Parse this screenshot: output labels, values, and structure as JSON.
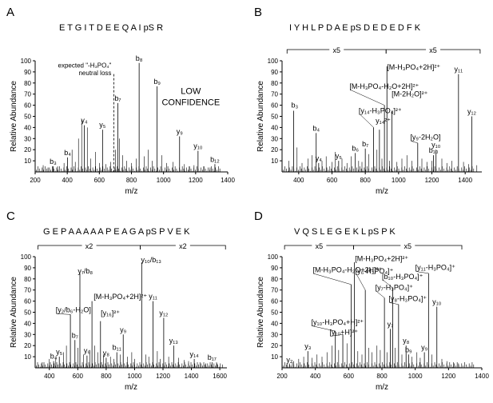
{
  "chart_data": [
    {
      "type": "bar",
      "panel_label": "A",
      "peptide_sequence": "E T G I T D E E Q A I pS R",
      "xlabel": "m/z",
      "ylabel": "Relative Abundance",
      "xlim": [
        200,
        1400
      ],
      "ylim": [
        0,
        100
      ],
      "xticks": [
        "200",
        "400",
        "600",
        "800",
        "1000",
        "1200",
        "1400"
      ],
      "yticks": [
        "10",
        "20",
        "30",
        "40",
        "50",
        "60",
        "70",
        "80",
        "90",
        "100"
      ],
      "annotations": {
        "neutral_loss": [
          "expected \"-H₃PO₄\"",
          "neutral loss"
        ],
        "neutral_loss_mz": 690,
        "confidence": [
          "LOW",
          "CONFIDENCE"
        ]
      },
      "scale_regions": [],
      "peaks": [
        {
          "label": "b₃",
          "mz": 312,
          "value": 5
        },
        {
          "label": "b₄",
          "mz": 402,
          "value": 13
        },
        {
          "label": "y₄",
          "mz": 506,
          "value": 42
        },
        {
          "label": "y₅",
          "mz": 620,
          "value": 38
        },
        {
          "label": "b₇",
          "mz": 715,
          "value": 62
        },
        {
          "label": "b₈",
          "mz": 848,
          "value": 98
        },
        {
          "label": "b₉",
          "mz": 960,
          "value": 77
        },
        {
          "label": "y₉",
          "mz": 1100,
          "value": 32
        },
        {
          "label": "y₁₀",
          "mz": 1215,
          "value": 19
        },
        {
          "label": "b₁₂",
          "mz": 1320,
          "value": 7
        }
      ],
      "other_peaks": [
        [
          250,
          6
        ],
        [
          280,
          4
        ],
        [
          340,
          5
        ],
        [
          380,
          8
        ],
        [
          430,
          20
        ],
        [
          450,
          9
        ],
        [
          470,
          30
        ],
        [
          490,
          47
        ],
        [
          525,
          40
        ],
        [
          545,
          12
        ],
        [
          575,
          18
        ],
        [
          600,
          8
        ],
        [
          640,
          7
        ],
        [
          670,
          9
        ],
        [
          700,
          20
        ],
        [
          725,
          30
        ],
        [
          745,
          15
        ],
        [
          770,
          10
        ],
        [
          800,
          8
        ],
        [
          830,
          12
        ],
        [
          880,
          14
        ],
        [
          905,
          20
        ],
        [
          930,
          10
        ],
        [
          990,
          15
        ],
        [
          1020,
          8
        ],
        [
          1060,
          9
        ],
        [
          1130,
          7
        ],
        [
          1160,
          5
        ],
        [
          1190,
          6
        ],
        [
          1250,
          5
        ],
        [
          1290,
          4
        ]
      ]
    },
    {
      "type": "bar",
      "panel_label": "B",
      "peptide_sequence": "I Y H L P D A E pS D E D E D F K",
      "xlabel": "m/z",
      "ylabel": "Relative Abundance",
      "xlim": [
        300,
        1500
      ],
      "ylim": [
        0,
        100
      ],
      "xticks": [
        "400",
        "600",
        "800",
        "1000",
        "1200",
        "1400"
      ],
      "yticks": [
        "10",
        "20",
        "30",
        "40",
        "50",
        "60",
        "70",
        "80",
        "90",
        "100"
      ],
      "scale_regions": [
        {
          "label": "x5",
          "from": 330,
          "to": 925
        },
        {
          "label": "x5",
          "from": 925,
          "to": 1490
        }
      ],
      "peaks": [
        {
          "label": "b₃",
          "mz": 370,
          "value": 55,
          "text_mz": 355,
          "text_value": 58
        },
        {
          "label": "b₄",
          "mz": 505,
          "value": 35
        },
        {
          "label": "y₄",
          "mz": 520,
          "value": 8
        },
        {
          "label": "y₅",
          "mz": 640,
          "value": 10
        },
        {
          "label": "b₆",
          "mz": 740,
          "value": 17
        },
        {
          "label": "b₇",
          "mz": 800,
          "value": 21
        },
        {
          "label": "[y₁₄-H₃PO₄]²⁺",
          "mz": 850,
          "value": 40,
          "text_mz": 760,
          "text_value": 53
        },
        {
          "label": "y₁₄²⁺",
          "mz": 885,
          "value": 38,
          "text_mz": 862,
          "text_value": 44
        },
        {
          "label": "[M-H₃PO₄-H₂O+2H]²⁺",
          "mz": 915,
          "value": 60,
          "text_mz": 705,
          "text_value": 75
        },
        {
          "label": "[M-H₃PO₄+2H]²⁺",
          "mz": 930,
          "value": 95,
          "text_mz": 930,
          "text_value": 92
        },
        {
          "label": "[M-2H₂O]²⁺",
          "mz": 960,
          "value": 55,
          "text_mz": 958,
          "text_value": 68
        },
        {
          "label": "[y₉-2H₂O]",
          "mz": 1115,
          "value": 26,
          "text_mz": 1070,
          "text_value": 29
        },
        {
          "label": "b₁₀",
          "mz": 1210,
          "value": 15
        },
        {
          "label": "y₁₀",
          "mz": 1225,
          "value": 20
        },
        {
          "label": "y₁₁",
          "mz": 1360,
          "value": 88
        },
        {
          "label": "y₁₂",
          "mz": 1440,
          "value": 50
        }
      ],
      "other_peaks": [
        [
          340,
          10
        ],
        [
          390,
          22
        ],
        [
          420,
          8
        ],
        [
          455,
          12
        ],
        [
          480,
          15
        ],
        [
          540,
          10
        ],
        [
          565,
          14
        ],
        [
          600,
          9
        ],
        [
          620,
          18
        ],
        [
          660,
          12
        ],
        [
          690,
          8
        ],
        [
          715,
          14
        ],
        [
          760,
          10
        ],
        [
          780,
          9
        ],
        [
          820,
          16
        ],
        [
          870,
          20
        ],
        [
          900,
          12
        ],
        [
          945,
          10
        ],
        [
          990,
          9
        ],
        [
          1020,
          12
        ],
        [
          1050,
          15
        ],
        [
          1080,
          10
        ],
        [
          1140,
          12
        ],
        [
          1170,
          9
        ],
        [
          1200,
          10
        ],
        [
          1260,
          12
        ],
        [
          1290,
          8
        ],
        [
          1320,
          10
        ],
        [
          1390,
          9
        ],
        [
          1420,
          7
        ],
        [
          1470,
          6
        ]
      ]
    },
    {
      "type": "bar",
      "panel_label": "C",
      "peptide_sequence": "G E P A A A A A P E A G A pS P V E K",
      "xlabel": "m/z",
      "ylabel": "Relative Abundance",
      "xlim": [
        300,
        1650
      ],
      "ylim": [
        0,
        100
      ],
      "xticks": [
        "400",
        "600",
        "800",
        "1000",
        "1200",
        "1400",
        "1600"
      ],
      "yticks": [
        "10",
        "20",
        "30",
        "40",
        "50",
        "60",
        "70",
        "80",
        "90",
        "100"
      ],
      "scale_regions": [
        {
          "label": "x2",
          "from": 320,
          "to": 1040
        },
        {
          "label": "x2",
          "from": 1040,
          "to": 1640
        }
      ],
      "peaks": [
        {
          "label": "b₄",
          "mz": 430,
          "value": 6
        },
        {
          "label": "y₅",
          "mz": 470,
          "value": 10
        },
        {
          "label": "[y₂/b₆-H₂O]",
          "mz": 548,
          "value": 48,
          "text_mz": 445,
          "text_value": 50
        },
        {
          "label": "b₇",
          "mz": 580,
          "value": 25
        },
        {
          "label": "y₇/b₈",
          "mz": 615,
          "value": 85,
          "text_mz": 600,
          "text_value": 85
        },
        {
          "label": "y₆",
          "mz": 665,
          "value": 11
        },
        {
          "label": "[M-H₃PO₄+2H]²⁺",
          "mz": 700,
          "value": 60,
          "text_mz": 712,
          "text_value": 62
        },
        {
          "label": "[y₁₆]²⁺",
          "mz": 760,
          "value": 42,
          "text_mz": 762,
          "text_value": 47
        },
        {
          "label": "y₈",
          "mz": 800,
          "value": 9
        },
        {
          "label": "b₁₁",
          "mz": 875,
          "value": 14
        },
        {
          "label": "y₉",
          "mz": 920,
          "value": 30
        },
        {
          "label": "y₁₀/b₁₃",
          "mz": 1050,
          "value": 95,
          "text_mz": 1045,
          "text_value": 95
        },
        {
          "label": "y₁₁",
          "mz": 1130,
          "value": 60
        },
        {
          "label": "y₁₂",
          "mz": 1205,
          "value": 45
        },
        {
          "label": "y₁₃",
          "mz": 1275,
          "value": 20
        },
        {
          "label": "y₁₄",
          "mz": 1420,
          "value": 8
        },
        {
          "label": "b₁₇",
          "mz": 1545,
          "value": 5
        }
      ],
      "other_peaks": [
        [
          350,
          5
        ],
        [
          400,
          8
        ],
        [
          445,
          9
        ],
        [
          500,
          14
        ],
        [
          520,
          20
        ],
        [
          600,
          18
        ],
        [
          640,
          12
        ],
        [
          685,
          16
        ],
        [
          720,
          20
        ],
        [
          740,
          14
        ],
        [
          780,
          12
        ],
        [
          830,
          10
        ],
        [
          855,
          8
        ],
        [
          900,
          12
        ],
        [
          950,
          10
        ],
        [
          980,
          14
        ],
        [
          1000,
          8
        ],
        [
          1080,
          12
        ],
        [
          1100,
          10
        ],
        [
          1160,
          15
        ],
        [
          1180,
          8
        ],
        [
          1240,
          10
        ],
        [
          1310,
          9
        ],
        [
          1350,
          7
        ],
        [
          1380,
          6
        ],
        [
          1460,
          5
        ],
        [
          1500,
          4
        ],
        [
          1580,
          4
        ],
        [
          1620,
          3
        ]
      ]
    },
    {
      "type": "bar",
      "panel_label": "D",
      "peptide_sequence": "V Q S L E G E K L pS P K",
      "xlabel": "m/z",
      "ylabel": "Relative Abundance",
      "xlim": [
        200,
        1400
      ],
      "ylim": [
        0,
        100
      ],
      "xticks": [
        "200",
        "400",
        "600",
        "800",
        "1000",
        "1200",
        "1400"
      ],
      "yticks": [
        "10",
        "20",
        "30",
        "40",
        "50",
        "60",
        "70",
        "80",
        "90",
        "100"
      ],
      "scale_regions": [
        {
          "label": "x5",
          "from": 215,
          "to": 630
        },
        {
          "label": "x5",
          "from": 630,
          "to": 1280
        }
      ],
      "peaks": [
        {
          "label": "y₂",
          "mz": 245,
          "value": 3
        },
        {
          "label": "y₃",
          "mz": 355,
          "value": 15
        },
        {
          "label": "[y₁₀-H₃PO₄+H]²⁺",
          "mz": 520,
          "value": 33,
          "text_mz": 375,
          "text_value": 39
        },
        {
          "label": "[y₁₀+H]²⁺",
          "mz": 565,
          "value": 30,
          "text_mz": 485,
          "text_value": 30
        },
        {
          "label": "[M-H₃PO₄-H₂O+2H]²⁺",
          "mz": 615,
          "value": 75,
          "text_mz": 385,
          "text_value": 86
        },
        {
          "label": "[M-H₃PO₄+2H]²⁺",
          "mz": 635,
          "value": 95,
          "text_mz": 638,
          "text_value": 96
        },
        {
          "label": "[y₆-H₃PO₄]⁺",
          "mz": 700,
          "value": 70,
          "text_mz": 640,
          "text_value": 85
        },
        {
          "label": "[y₇-H₃PO₄]⁺",
          "mz": 815,
          "value": 63,
          "text_mz": 760,
          "text_value": 70
        },
        {
          "label": "[b₁₀-H₃PO₄]⁺",
          "mz": 865,
          "value": 72,
          "text_mz": 800,
          "text_value": 80
        },
        {
          "label": "[y₈-H₃PO₄]⁺",
          "mz": 900,
          "value": 57,
          "text_mz": 840,
          "text_value": 60
        },
        {
          "label": "[y₁₁-H₃PO₄]⁺",
          "mz": 1080,
          "value": 85,
          "text_mz": 1000,
          "text_value": 88
        },
        {
          "label": "y₇",
          "mz": 850,
          "value": 35
        },
        {
          "label": "y₈",
          "mz": 945,
          "value": 20
        },
        {
          "label": "b₉",
          "mz": 960,
          "value": 12
        },
        {
          "label": "y₉",
          "mz": 1055,
          "value": 14
        },
        {
          "label": "y₁₀",
          "mz": 1130,
          "value": 55
        }
      ],
      "other_peaks": [
        [
          230,
          4
        ],
        [
          270,
          6
        ],
        [
          300,
          8
        ],
        [
          330,
          10
        ],
        [
          380,
          9
        ],
        [
          410,
          12
        ],
        [
          440,
          10
        ],
        [
          470,
          14
        ],
        [
          500,
          20
        ],
        [
          540,
          16
        ],
        [
          590,
          22
        ],
        [
          655,
          15
        ],
        [
          680,
          12
        ],
        [
          720,
          18
        ],
        [
          740,
          14
        ],
        [
          770,
          20
        ],
        [
          790,
          16
        ],
        [
          830,
          14
        ],
        [
          880,
          18
        ],
        [
          920,
          12
        ],
        [
          980,
          10
        ],
        [
          1010,
          14
        ],
        [
          1030,
          9
        ],
        [
          1100,
          12
        ],
        [
          1160,
          8
        ],
        [
          1190,
          6
        ],
        [
          1230,
          5
        ],
        [
          1260,
          4
        ]
      ]
    }
  ]
}
